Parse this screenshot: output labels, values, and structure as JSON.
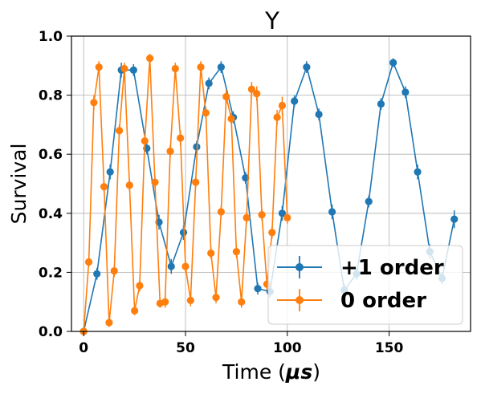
{
  "chart_data": {
    "type": "line",
    "title": "Y",
    "xlabel_prefix": "Time (",
    "xlabel_unit": "μs",
    "xlabel_suffix": ")",
    "ylabel": "Survival",
    "xlim": [
      -6,
      190
    ],
    "ylim": [
      0.0,
      1.0
    ],
    "xticks": [
      0,
      50,
      100,
      150
    ],
    "yticks": [
      0.0,
      0.2,
      0.4,
      0.6,
      0.8,
      1.0
    ],
    "ytick_labels": [
      "0.0",
      "0.2",
      "0.4",
      "0.6",
      "0.8",
      "1.0"
    ],
    "grid": true,
    "legend_position": "bottom-right",
    "series": [
      {
        "name": "+1 order",
        "color": "#1f77b4",
        "x": [
          0,
          6.5,
          13,
          18.5,
          24.5,
          31,
          37,
          43,
          49,
          55.5,
          61.5,
          67.5,
          73.5,
          79.5,
          85.5,
          91.5,
          97.5,
          103.5,
          109.5,
          115.5,
          122,
          128,
          134,
          140,
          146,
          152,
          158,
          164,
          170,
          176,
          182
        ],
        "y": [
          0.0,
          0.195,
          0.54,
          0.885,
          0.885,
          0.62,
          0.37,
          0.22,
          0.335,
          0.625,
          0.84,
          0.895,
          0.725,
          0.52,
          0.145,
          0.135,
          0.4,
          0.78,
          0.895,
          0.735,
          0.405,
          0.14,
          0.195,
          0.44,
          0.77,
          0.91,
          0.81,
          0.54,
          0.27,
          0.18,
          0.38
        ],
        "err": [
          0,
          0.02,
          0.025,
          0.025,
          0.02,
          0.02,
          0.025,
          0.025,
          0.025,
          0.02,
          0.02,
          0.02,
          0.02,
          0.02,
          0.02,
          0.02,
          0.025,
          0.02,
          0.02,
          0.02,
          0.025,
          0.02,
          0.02,
          0.02,
          0.02,
          0.015,
          0.02,
          0.025,
          0.025,
          0.02,
          0.03
        ]
      },
      {
        "name": "0 order",
        "color": "#ff7f0e",
        "x": [
          0,
          2.5,
          5,
          7.5,
          10,
          12.5,
          15,
          17.5,
          20,
          22.5,
          25,
          27.5,
          30,
          32.5,
          35,
          37.5,
          40,
          42.5,
          45,
          47.5,
          50,
          52.5,
          55,
          57.5,
          60,
          62.5,
          65,
          67.5,
          70,
          72.5,
          75,
          77.5,
          80,
          82.5,
          85,
          87.5,
          90,
          92.5,
          95,
          97.5,
          100
        ],
        "y": [
          0.0,
          0.235,
          0.775,
          0.895,
          0.49,
          0.03,
          0.205,
          0.68,
          0.89,
          0.495,
          0.07,
          0.155,
          0.645,
          0.925,
          0.505,
          0.095,
          0.1,
          0.61,
          0.89,
          0.655,
          0.22,
          0.105,
          0.505,
          0.895,
          0.74,
          0.265,
          0.115,
          0.405,
          0.795,
          0.72,
          0.27,
          0.1,
          0.385,
          0.82,
          0.805,
          0.395,
          0.16,
          0.335,
          0.725,
          0.765,
          0.385
        ],
        "err": [
          0,
          0.015,
          0.025,
          0.02,
          0.02,
          0.015,
          0.02,
          0.02,
          0.02,
          0.02,
          0.015,
          0.02,
          0.025,
          0.015,
          0.02,
          0.015,
          0.02,
          0.02,
          0.02,
          0.025,
          0.02,
          0.02,
          0.02,
          0.02,
          0.02,
          0.02,
          0.02,
          0.02,
          0.025,
          0.02,
          0.02,
          0.02,
          0.02,
          0.025,
          0.025,
          0.02,
          0.02,
          0.02,
          0.025,
          0.03,
          0.02
        ]
      }
    ]
  }
}
